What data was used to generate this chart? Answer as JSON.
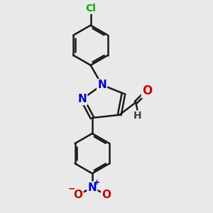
{
  "bg_color": "#e9e9e9",
  "bond_color": "#1a1a1a",
  "bond_width": 1.8,
  "atom_colors": {
    "N": "#0000cc",
    "O": "#cc0000",
    "Cl": "#00aa00",
    "C": "#1a1a1a",
    "H": "#404040"
  },
  "font_size_atom": 11,
  "font_size_small": 9,
  "font_size_cl": 10
}
